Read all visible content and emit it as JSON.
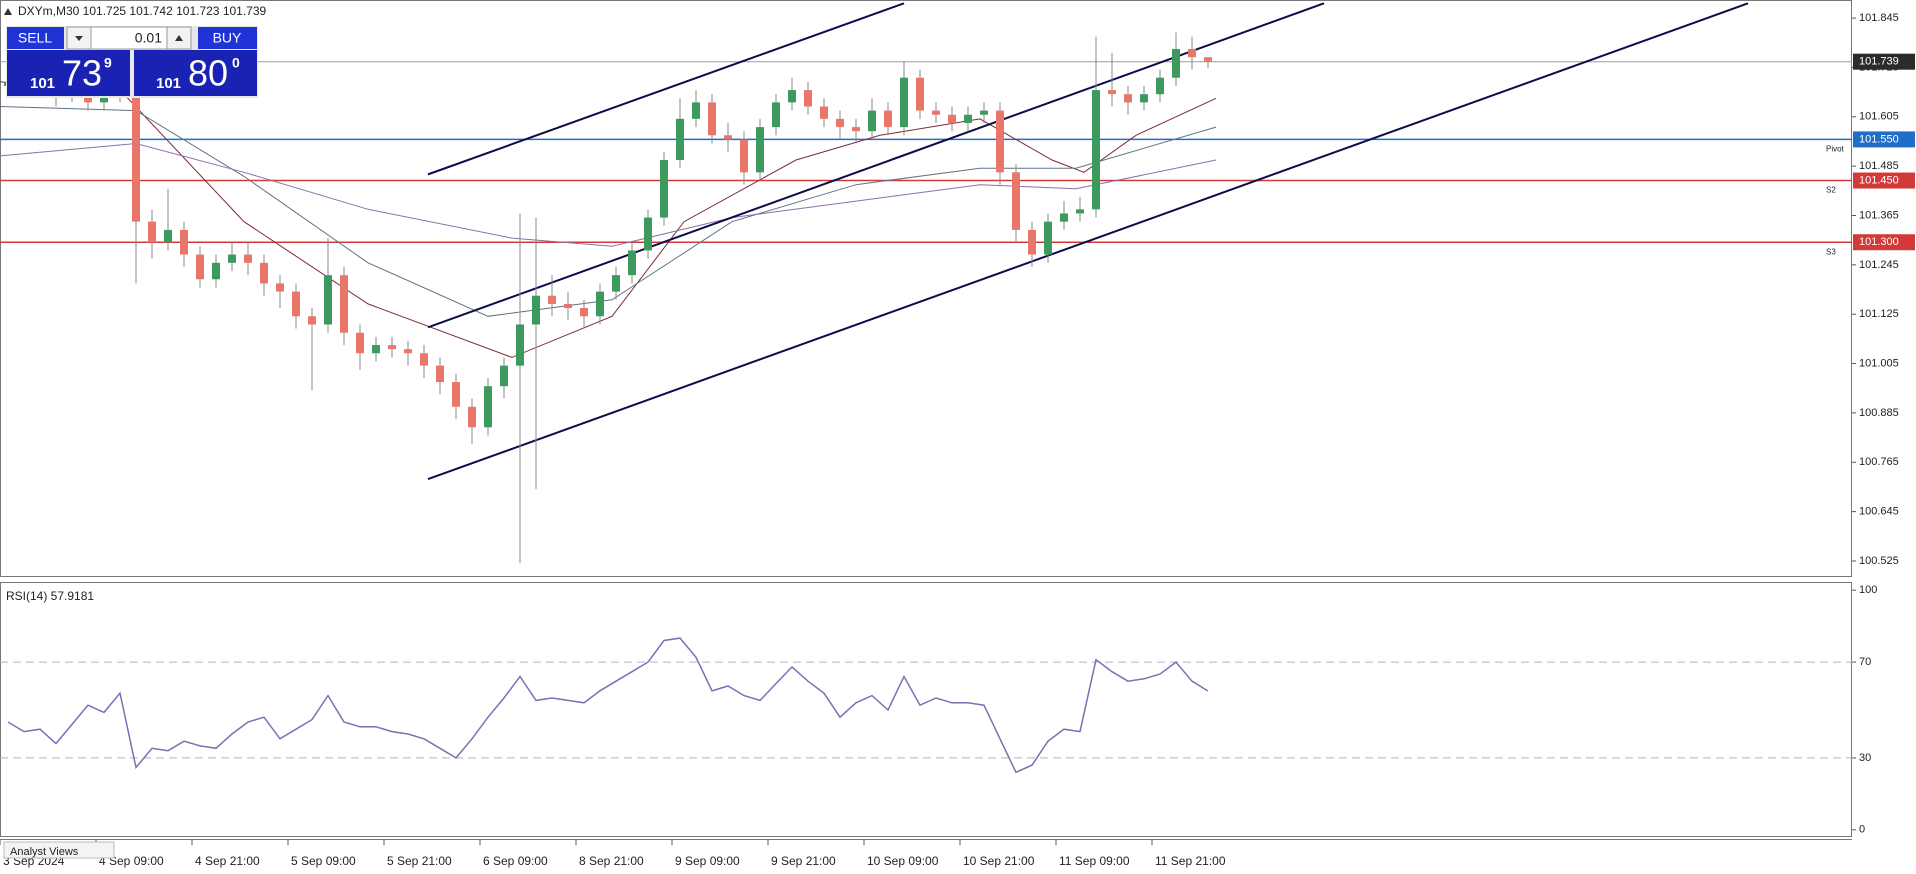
{
  "header": "DXYm,M30  101.725 101.742 101.723 101.739",
  "trade_panel": {
    "sell": "SELL",
    "buy": "BUY",
    "lot": "0.01",
    "sell_big": "101",
    "sell_main": "73",
    "sell_sup": "9",
    "buy_big": "101",
    "buy_main": "80",
    "buy_sup": "0"
  },
  "tab_label": "Analyst Views",
  "chart_data": [
    {
      "type": "candlestick",
      "grid": false,
      "up_color": "#3c9a5f",
      "down_color": "#e8776a",
      "wick_color": "#8a8a8a",
      "xlim": [
        0,
        463
      ],
      "ylim": [
        100.486,
        101.889
      ],
      "yticks": [
        101.845,
        101.725,
        101.605,
        101.485,
        101.365,
        101.245,
        101.125,
        101.005,
        100.885,
        100.765,
        100.645,
        100.525
      ],
      "xticks": [
        {
          "value": 0,
          "label": "3 Sep 2024"
        },
        {
          "value": 24,
          "label": "4 Sep 09:00"
        },
        {
          "value": 48,
          "label": "4 Sep 21:00"
        },
        {
          "value": 72,
          "label": "5 Sep 09:00"
        },
        {
          "value": 96,
          "label": "5 Sep 21:00"
        },
        {
          "value": 120,
          "label": "6 Sep 09:00"
        },
        {
          "value": 144,
          "label": "8 Sep 21:00"
        },
        {
          "value": 168,
          "label": "9 Sep 09:00"
        },
        {
          "value": 192,
          "label": "9 Sep 21:00"
        },
        {
          "value": 216,
          "label": "10 Sep 09:00"
        },
        {
          "value": 240,
          "label": "10 Sep 21:00"
        },
        {
          "value": 264,
          "label": "11 Sep 09:00"
        },
        {
          "value": 288,
          "label": "11 Sep 21:00"
        }
      ],
      "x": [
        2,
        6,
        10,
        14,
        18,
        22,
        26,
        30,
        34,
        38,
        42,
        46,
        50,
        54,
        58,
        62,
        66,
        70,
        74,
        78,
        82,
        86,
        90,
        94,
        98,
        102,
        106,
        110,
        114,
        118,
        122,
        126,
        130,
        134,
        138,
        142,
        146,
        150,
        154,
        158,
        162,
        166,
        170,
        174,
        178,
        182,
        186,
        190,
        194,
        198,
        202,
        206,
        210,
        214,
        218,
        222,
        226,
        230,
        234,
        238,
        242,
        246,
        250,
        254,
        258,
        262,
        266,
        270,
        274,
        278,
        282,
        286,
        290,
        294,
        298,
        302
      ],
      "open": [
        101.68,
        101.69,
        101.7,
        101.67,
        101.66,
        101.68,
        101.64,
        101.67,
        101.66,
        101.35,
        101.3,
        101.33,
        101.27,
        101.21,
        101.25,
        101.27,
        101.25,
        101.2,
        101.18,
        101.12,
        101.1,
        101.22,
        101.08,
        101.03,
        101.05,
        101.04,
        101.03,
        101.0,
        100.96,
        100.9,
        100.85,
        100.95,
        101.0,
        101.1,
        101.17,
        101.15,
        101.14,
        101.12,
        101.18,
        101.22,
        101.28,
        101.36,
        101.5,
        101.6,
        101.64,
        101.56,
        101.55,
        101.47,
        101.58,
        101.64,
        101.67,
        101.63,
        101.6,
        101.58,
        101.57,
        101.62,
        101.58,
        101.7,
        101.62,
        101.61,
        101.59,
        101.61,
        101.62,
        101.47,
        101.33,
        101.27,
        101.35,
        101.37,
        101.38,
        101.67,
        101.66,
        101.64,
        101.66,
        101.7,
        101.77,
        101.75
      ],
      "high": [
        101.71,
        101.72,
        101.72,
        101.69,
        101.7,
        101.7,
        101.69,
        101.69,
        101.68,
        101.38,
        101.43,
        101.35,
        101.29,
        101.27,
        101.3,
        101.3,
        101.27,
        101.22,
        101.2,
        101.14,
        101.31,
        101.24,
        101.1,
        101.07,
        101.07,
        101.06,
        101.05,
        101.02,
        100.98,
        100.92,
        100.97,
        101.02,
        101.37,
        101.36,
        101.22,
        101.18,
        101.16,
        101.2,
        101.24,
        101.3,
        101.38,
        101.52,
        101.65,
        101.67,
        101.66,
        101.59,
        101.57,
        101.6,
        101.66,
        101.7,
        101.69,
        101.65,
        101.62,
        101.6,
        101.65,
        101.64,
        101.74,
        101.72,
        101.64,
        101.63,
        101.63,
        101.64,
        101.64,
        101.49,
        101.35,
        101.37,
        101.4,
        101.41,
        101.8,
        101.76,
        101.68,
        101.68,
        101.72,
        101.81,
        101.8,
        101.742
      ],
      "low": [
        101.66,
        101.67,
        101.65,
        101.63,
        101.64,
        101.62,
        101.62,
        101.64,
        101.2,
        101.26,
        101.28,
        101.24,
        101.19,
        101.19,
        101.23,
        101.22,
        101.17,
        101.14,
        101.09,
        100.94,
        101.08,
        101.05,
        100.99,
        101.01,
        101.02,
        101.0,
        100.97,
        100.93,
        100.87,
        100.81,
        100.83,
        100.92,
        100.52,
        100.7,
        101.12,
        101.11,
        101.09,
        101.1,
        101.16,
        101.2,
        101.26,
        101.34,
        101.48,
        101.58,
        101.54,
        101.52,
        101.44,
        101.45,
        101.56,
        101.62,
        101.61,
        101.58,
        101.55,
        101.54,
        101.55,
        101.56,
        101.56,
        101.6,
        101.59,
        101.57,
        101.57,
        101.59,
        101.44,
        101.3,
        101.24,
        101.25,
        101.33,
        101.35,
        101.36,
        101.63,
        101.61,
        101.62,
        101.64,
        101.68,
        101.72,
        101.723
      ],
      "close": [
        101.69,
        101.7,
        101.67,
        101.66,
        101.68,
        101.64,
        101.67,
        101.66,
        101.35,
        101.3,
        101.33,
        101.27,
        101.21,
        101.25,
        101.27,
        101.25,
        101.2,
        101.18,
        101.12,
        101.1,
        101.22,
        101.08,
        101.03,
        101.05,
        101.04,
        101.03,
        101.0,
        100.96,
        100.9,
        100.85,
        100.95,
        101.0,
        101.1,
        101.17,
        101.15,
        101.14,
        101.12,
        101.18,
        101.22,
        101.28,
        101.36,
        101.5,
        101.6,
        101.64,
        101.56,
        101.55,
        101.47,
        101.58,
        101.64,
        101.67,
        101.63,
        101.6,
        101.58,
        101.57,
        101.62,
        101.58,
        101.7,
        101.62,
        101.61,
        101.59,
        101.61,
        101.62,
        101.47,
        101.33,
        101.27,
        101.35,
        101.37,
        101.38,
        101.67,
        101.66,
        101.64,
        101.66,
        101.7,
        101.77,
        101.75,
        101.739
      ],
      "overlays": [
        {
          "color": "#7a2b3a",
          "x": [
            0,
            31,
            61,
            92,
            128,
            153,
            171,
            199,
            220,
            245,
            263,
            271,
            284,
            304
          ],
          "values": [
            101.69,
            101.66,
            101.35,
            101.15,
            101.02,
            101.12,
            101.35,
            101.5,
            101.56,
            101.6,
            101.5,
            101.47,
            101.56,
            101.65
          ]
        },
        {
          "color": "#5f7385",
          "x": [
            0,
            34,
            61,
            92,
            122,
            153,
            183,
            214,
            245,
            269,
            304
          ],
          "values": [
            101.63,
            101.62,
            101.46,
            101.25,
            101.12,
            101.16,
            101.35,
            101.44,
            101.48,
            101.48,
            101.58
          ]
        },
        {
          "color": "#8e6fa8",
          "x": [
            0,
            34,
            61,
            92,
            128,
            153,
            183,
            214,
            245,
            269,
            304
          ],
          "values": [
            101.51,
            101.54,
            101.47,
            101.38,
            101.31,
            101.29,
            101.36,
            101.4,
            101.44,
            101.43,
            101.5
          ]
        }
      ],
      "trendlines": [
        {
          "color": "#0d0d4a",
          "x": [
            107,
            226
          ],
          "values": [
            101.465,
            101.881
          ]
        },
        {
          "color": "#0d0d4a",
          "x": [
            107,
            331
          ],
          "values": [
            101.093,
            101.881
          ]
        },
        {
          "color": "#0d0d4a",
          "x": [
            107,
            437
          ],
          "values": [
            100.724,
            101.881
          ]
        }
      ],
      "levels": [
        {
          "name": "Pivot",
          "value": 101.55,
          "label": "101.550",
          "color": "#1f6fc8"
        },
        {
          "name": "S2",
          "value": 101.45,
          "label": "101.450",
          "color": "#d23a3a"
        },
        {
          "name": "S3",
          "value": 101.3,
          "label": "101.300",
          "color": "#d23a3a"
        }
      ],
      "current_price": 101.739
    },
    {
      "type": "line",
      "title": "RSI(14) 57.9181",
      "color": "#7d6fb3",
      "level_color": "#c9a6c0",
      "xlim": [
        0,
        463
      ],
      "ylim": [
        -3,
        103
      ],
      "yticks": [
        100,
        70,
        30,
        0
      ],
      "levels": [
        70,
        30
      ],
      "x": [
        2,
        6,
        10,
        14,
        18,
        22,
        26,
        30,
        34,
        38,
        42,
        46,
        50,
        54,
        58,
        62,
        66,
        70,
        74,
        78,
        82,
        86,
        90,
        94,
        98,
        102,
        106,
        110,
        114,
        118,
        122,
        126,
        130,
        134,
        138,
        142,
        146,
        150,
        154,
        158,
        162,
        166,
        170,
        174,
        178,
        182,
        186,
        190,
        194,
        198,
        202,
        206,
        210,
        214,
        218,
        222,
        226,
        230,
        234,
        238,
        242,
        246,
        250,
        254,
        258,
        262,
        266,
        270,
        274,
        278,
        282,
        286,
        290,
        294,
        298,
        302
      ],
      "values": [
        45,
        41,
        42,
        36,
        44,
        52,
        49,
        57,
        26,
        34,
        33,
        37,
        35,
        34,
        40,
        45,
        47,
        38,
        42,
        46,
        56,
        45,
        43,
        43,
        41,
        40,
        38,
        34,
        30,
        38,
        47,
        55,
        64,
        54,
        55,
        54,
        53,
        58,
        62,
        66,
        70,
        79,
        80,
        72,
        58,
        60,
        56,
        54,
        61,
        68,
        62,
        57,
        47,
        53,
        56,
        50,
        64,
        52,
        55,
        53,
        53,
        52,
        38,
        24,
        27,
        37,
        42,
        41,
        71,
        66,
        62,
        63,
        65,
        70,
        62,
        57.9181
      ]
    }
  ]
}
